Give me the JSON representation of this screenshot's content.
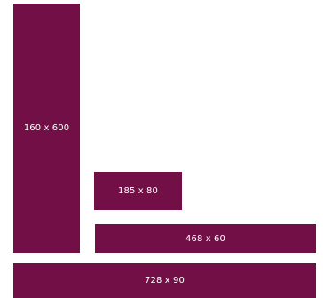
{
  "theme": {
    "block_color": "#730f47",
    "text_color": "#ffffff",
    "background": "#ffffff"
  },
  "ad_sizes": [
    {
      "id": "skyscraper",
      "label": "160 x 600"
    },
    {
      "id": "button",
      "label": "185 x 80"
    },
    {
      "id": "banner",
      "label": "468 x 60"
    },
    {
      "id": "leaderboard",
      "label": "728 x 90"
    }
  ]
}
